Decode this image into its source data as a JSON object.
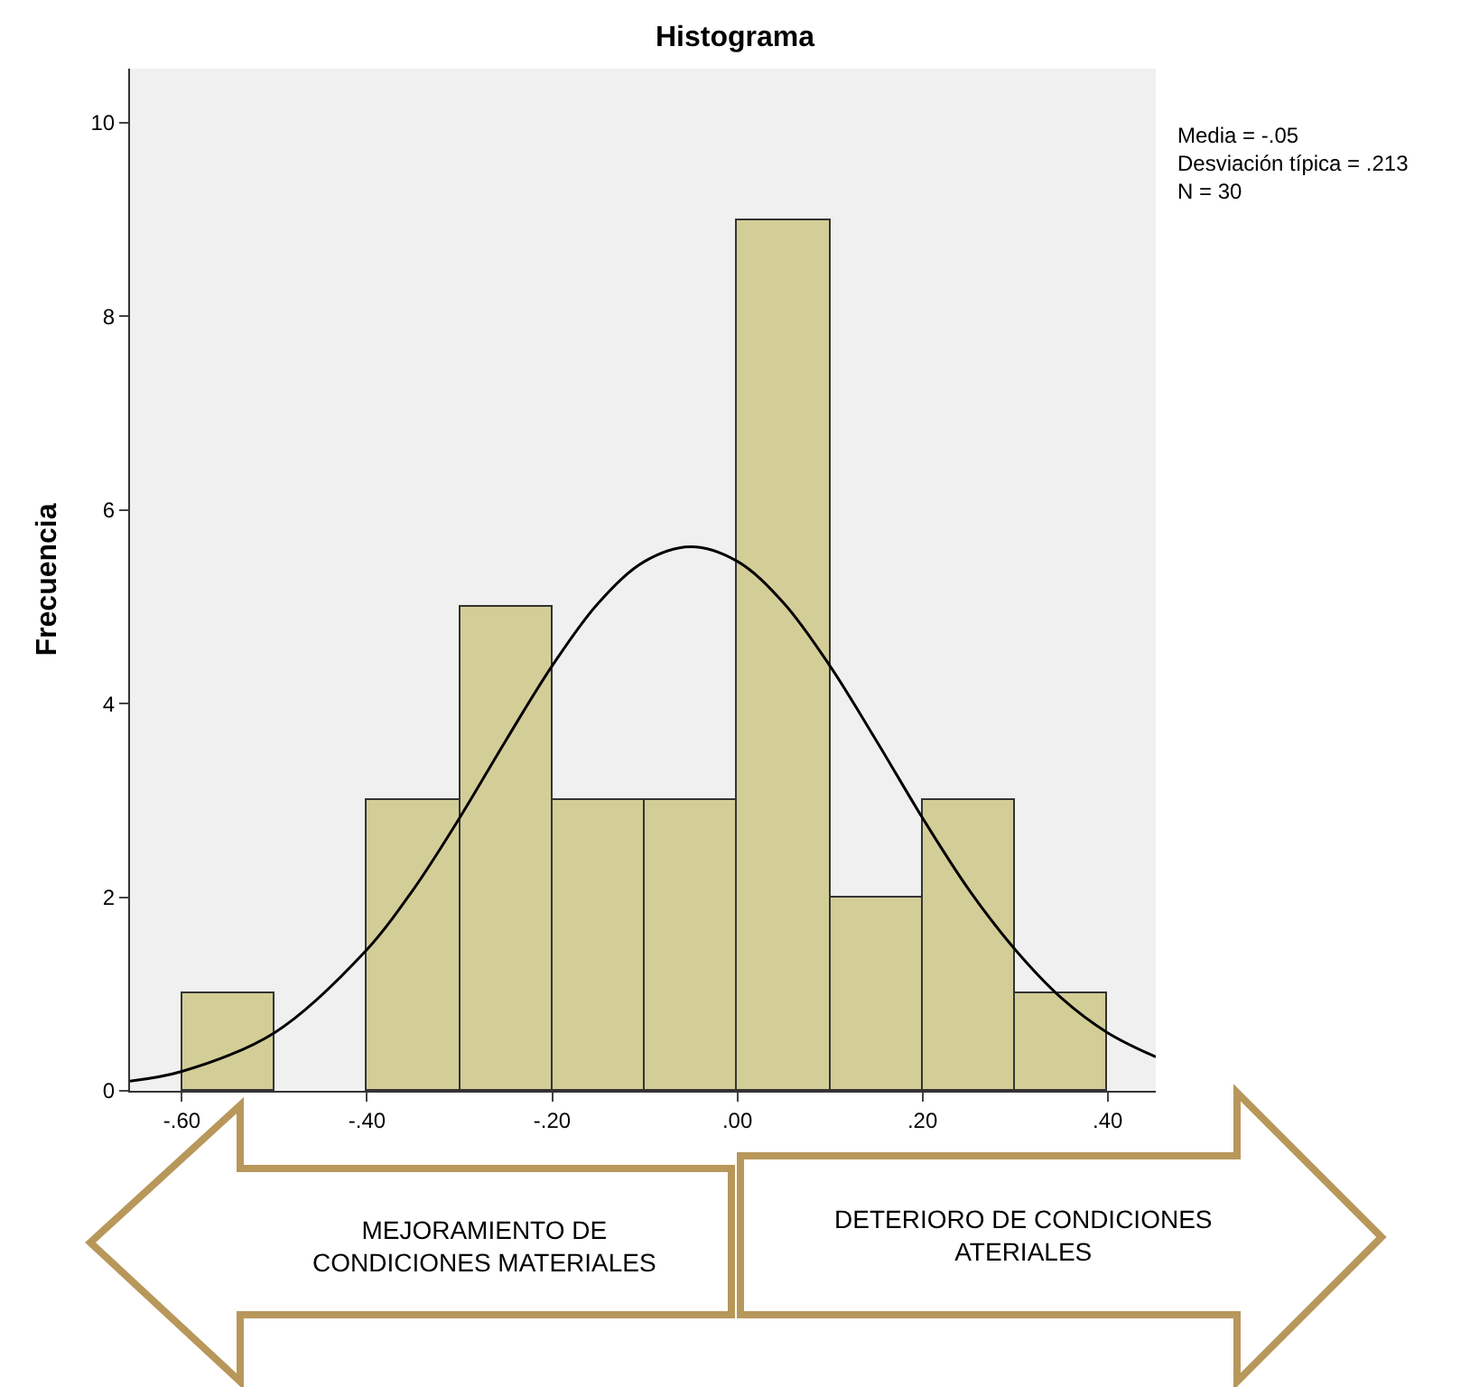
{
  "chart_data": {
    "type": "histogram",
    "title": "Histograma",
    "ylabel": "Frecuencia",
    "bins": [
      -0.6,
      -0.5,
      -0.4,
      -0.3,
      -0.2,
      -0.1,
      0.0,
      0.1,
      0.2,
      0.3,
      0.4
    ],
    "values": [
      1,
      0,
      3,
      5,
      3,
      3,
      9,
      2,
      3,
      1
    ],
    "color": "#d3ce97",
    "series": [
      {
        "type": "line",
        "color": "#000000",
        "x": [
          -0.656,
          -0.6,
          -0.5,
          -0.4,
          -0.35,
          -0.3,
          -0.25,
          -0.2,
          -0.15,
          -0.1,
          -0.05,
          0.0,
          0.05,
          0.1,
          0.15,
          0.2,
          0.25,
          0.3,
          0.35,
          0.4,
          0.452
        ],
        "values": [
          0.1,
          0.2,
          0.6,
          1.46,
          2.08,
          2.82,
          3.62,
          4.39,
          5.04,
          5.47,
          5.62,
          5.47,
          5.04,
          4.39,
          3.62,
          2.82,
          2.08,
          1.46,
          0.96,
          0.6,
          0.35
        ]
      }
    ],
    "xlim": [
      -0.656,
      0.452
    ],
    "xticks": [
      {
        "value": -0.6,
        "label": "-.60"
      },
      {
        "value": -0.4,
        "label": "-.40"
      },
      {
        "value": -0.2,
        "label": "-.20"
      },
      {
        "value": 0.0,
        "label": ".00"
      },
      {
        "value": 0.2,
        "label": ".20"
      },
      {
        "value": 0.4,
        "label": ".40"
      }
    ],
    "ylim": [
      0,
      10.56
    ],
    "yticks": [
      0,
      2,
      4,
      6,
      8,
      10
    ],
    "grid": false,
    "annotations": [
      "Media = -.05",
      "Desviación típica = .213",
      "N = 30",
      "MEJORAMIENTO DE CONDICIONES MATERIALES",
      "DETERIORO DE CONDICIONES ATERIALES"
    ]
  }
}
